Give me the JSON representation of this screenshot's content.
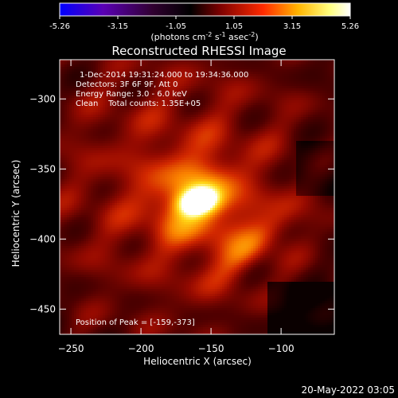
{
  "chart_data": {
    "type": "heatmap",
    "title": "Reconstructed RHESSI Image",
    "xlabel": "Heliocentric X (arcsec)",
    "ylabel": "Heliocentric Y (arcsec)",
    "xlim": [
      -258,
      -62
    ],
    "ylim": [
      -468,
      -272
    ],
    "x_ticks": [
      -250,
      -200,
      -150,
      -100
    ],
    "y_ticks": [
      -300,
      -350,
      -400,
      -450
    ],
    "colorbar": {
      "min": -5.26,
      "max": 5.26,
      "ticks": [
        "-5.26",
        "-3.15",
        "-1.05",
        "1.05",
        "3.15",
        "5.26"
      ],
      "unit_main": "(photons cm",
      "unit_exp1": "-2",
      "unit_mid": " s",
      "unit_exp2": "-1",
      "unit_tail": " asec",
      "unit_exp3": "-2",
      "unit_close": ")"
    },
    "annotations": [
      "1-Dec-2014 19:31:24.000 to 19:34:36.000",
      "Detectors: 3F 6F 9F, Att 0",
      "Energy Range: 3.0 - 6.0 keV",
      "Clean    Total counts: 1.35E+05"
    ],
    "peak_label": "Position of Peak = [-159,-373]",
    "peak": {
      "x": -159,
      "y": -373,
      "value": 5.26
    },
    "secondary_source": {
      "x": -120,
      "y": -405
    },
    "colors": [
      "#0000ff",
      "#5a00b4",
      "#2a0028",
      "#000000",
      "#7a0000",
      "#ff2a00",
      "#ffb400",
      "#ffffa0",
      "#ffffff"
    ]
  },
  "footer": {
    "timestamp": "20-May-2022 03:05"
  }
}
